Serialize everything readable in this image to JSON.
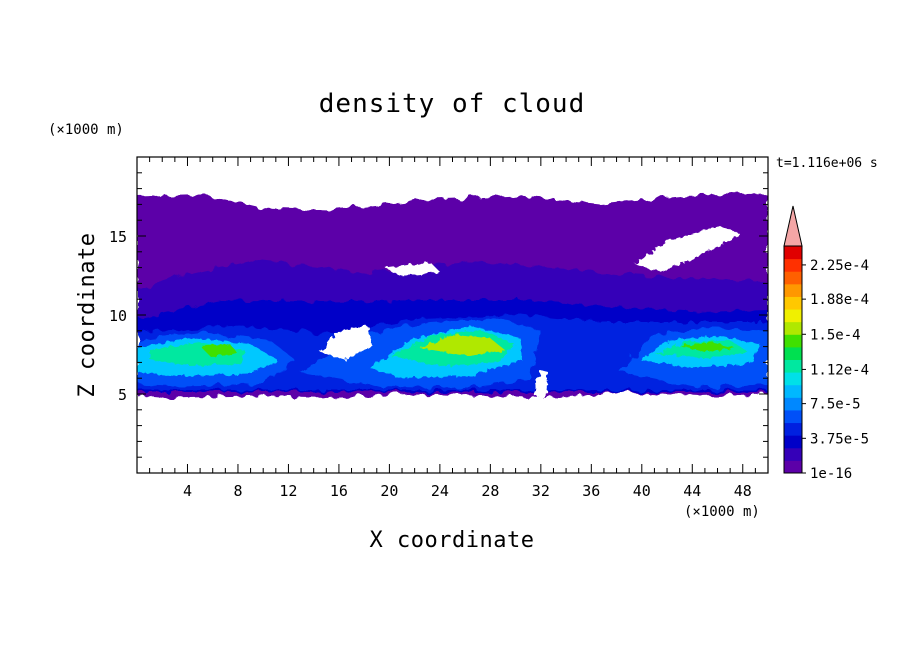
{
  "chart_data": {
    "type": "heatmap",
    "title": "density of cloud",
    "xlabel": "X coordinate",
    "ylabel": "Z coordinate",
    "x_unit": "(×1000 m)",
    "y_unit": "(×1000 m)",
    "time_label": "t=1.116e+06 s",
    "xlim": [
      0,
      50
    ],
    "ylim": [
      0,
      20
    ],
    "x_ticks": [
      4,
      8,
      12,
      16,
      20,
      24,
      28,
      32,
      36,
      40,
      44,
      48
    ],
    "y_ticks": [
      5,
      10,
      15
    ],
    "colorbar": {
      "labels": [
        "2.25e-4",
        "1.88e-4",
        "1.5e-4",
        "1.12e-4",
        "7.5e-5",
        "3.75e-5",
        "1e-16"
      ],
      "label_values": [
        0.000225,
        0.000188,
        0.00015,
        0.000112,
        7.5e-05,
        3.75e-05,
        1e-16
      ],
      "colors_bottom_to_top": [
        "#5c00a8",
        "#3500b8",
        "#0000c8",
        "#0020e0",
        "#0050f8",
        "#0088ff",
        "#00b8ff",
        "#00e0e8",
        "#00e8a0",
        "#00e050",
        "#40e000",
        "#b0e800",
        "#f0f000",
        "#ffc800",
        "#ff9800",
        "#ff6000",
        "#ff3000",
        "#e00000"
      ],
      "extend_color": "#f4a6a6"
    },
    "regions": [
      {
        "name": "upper cloud layer",
        "x": [
          0,
          50
        ],
        "z": [
          5,
          17.5
        ],
        "level": "1e-16"
      },
      {
        "name": "mid cloud band",
        "x": [
          0,
          50
        ],
        "z": [
          9.5,
          12
        ],
        "level": "3.75e-5"
      },
      {
        "name": "left core",
        "x": [
          0,
          10
        ],
        "z": [
          6.5,
          8.5
        ],
        "level": "1.12e-4"
      },
      {
        "name": "center core",
        "x": [
          19,
          30
        ],
        "z": [
          6.5,
          9
        ],
        "level": "1.5e-4"
      },
      {
        "name": "right core",
        "x": [
          40,
          47
        ],
        "z": [
          7,
          8.5
        ],
        "level": "1.12e-4"
      }
    ]
  }
}
